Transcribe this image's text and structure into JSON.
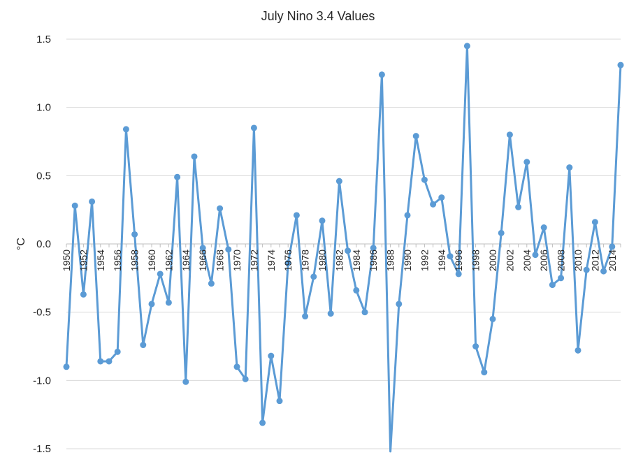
{
  "chart_data": {
    "type": "line",
    "title": "July Nino 3.4 Values",
    "ylabel": "°C",
    "xlabel": "",
    "ylim": [
      -1.5,
      1.5
    ],
    "y_ticks": [
      "1.5",
      "1.0",
      "0.5",
      "0.0",
      "-0.5",
      "-1.0",
      "-1.5"
    ],
    "x_tick_labels": [
      "1950",
      "1952",
      "1954",
      "1956",
      "1958",
      "1960",
      "1962",
      "1964",
      "1966",
      "1968",
      "1970",
      "1972",
      "1974",
      "1976",
      "1978",
      "1980",
      "1982",
      "1984",
      "1986",
      "1988",
      "1990",
      "1992",
      "1994",
      "1996",
      "1998",
      "2000",
      "2002",
      "2004",
      "2006",
      "2008",
      "2010",
      "2012",
      "2014"
    ],
    "grid": true,
    "color": "#5B9BD5",
    "x": [
      1950,
      1951,
      1952,
      1953,
      1954,
      1955,
      1956,
      1957,
      1958,
      1959,
      1960,
      1961,
      1962,
      1963,
      1964,
      1965,
      1966,
      1967,
      1968,
      1969,
      1970,
      1971,
      1972,
      1973,
      1974,
      1975,
      1976,
      1977,
      1978,
      1979,
      1980,
      1981,
      1982,
      1983,
      1984,
      1985,
      1986,
      1987,
      1988,
      1989,
      1990,
      1991,
      1992,
      1993,
      1994,
      1995,
      1996,
      1997,
      1998,
      1999,
      2000,
      2001,
      2002,
      2003,
      2004,
      2005,
      2006,
      2007,
      2008,
      2009,
      2010,
      2011,
      2012,
      2013,
      2014,
      2015
    ],
    "values": [
      -0.9,
      0.28,
      -0.37,
      0.31,
      -0.86,
      -0.86,
      -0.79,
      0.84,
      0.07,
      -0.74,
      -0.44,
      -0.22,
      -0.43,
      0.49,
      -1.01,
      0.64,
      -0.03,
      -0.29,
      0.26,
      -0.04,
      -0.9,
      -0.99,
      0.85,
      -1.31,
      -0.82,
      -1.15,
      -0.14,
      0.21,
      -0.53,
      -0.24,
      0.17,
      -0.51,
      0.46,
      -0.05,
      -0.34,
      -0.5,
      -0.03,
      1.24,
      -1.52,
      -0.44,
      0.21,
      0.79,
      0.47,
      0.29,
      0.34,
      -0.09,
      -0.22,
      1.45,
      -0.75,
      -0.94,
      -0.55,
      0.08,
      0.8,
      0.27,
      0.6,
      -0.08,
      0.12,
      -0.3,
      -0.25,
      0.56,
      -0.78,
      -0.19,
      0.16,
      -0.2,
      -0.02,
      1.31
    ]
  }
}
